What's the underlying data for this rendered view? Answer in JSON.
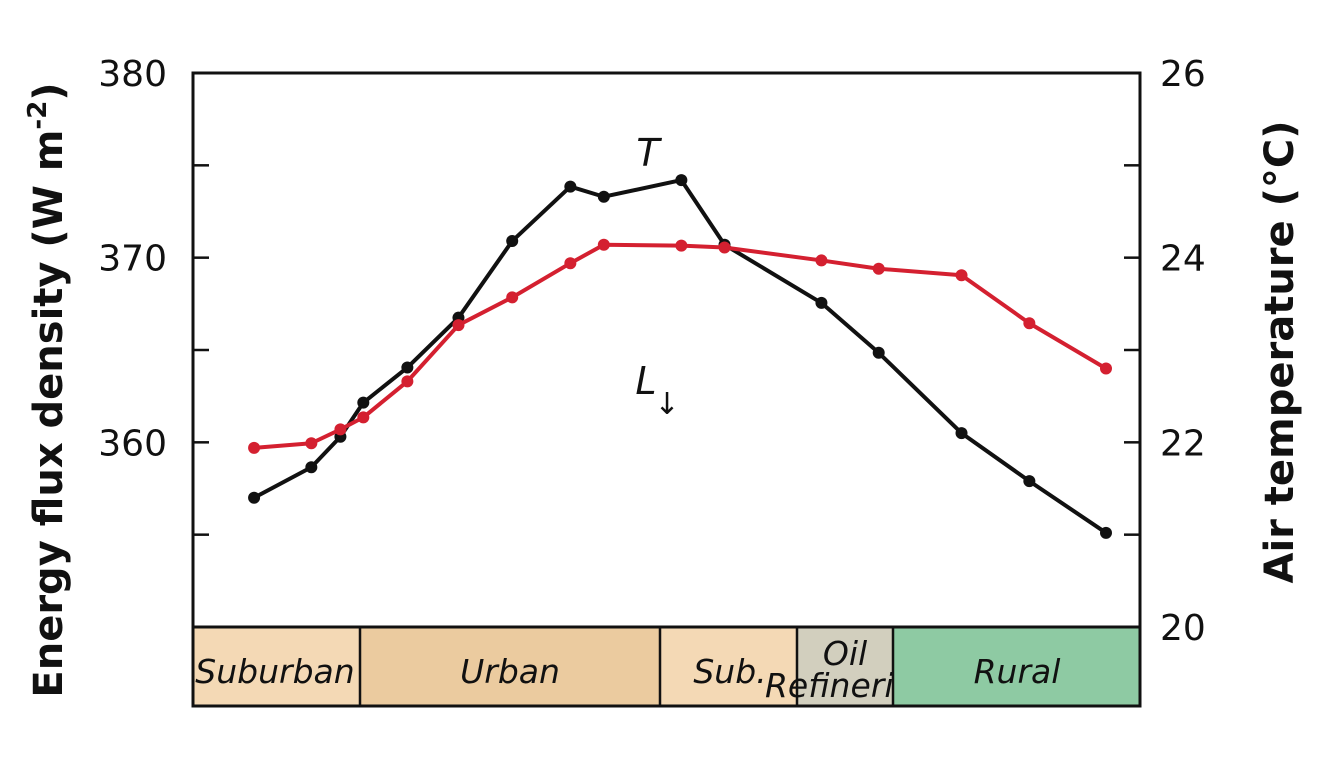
{
  "chart_data": {
    "type": "line",
    "title": "",
    "xlabel": "",
    "ylabel_left": "Energy flux density (W m",
    "ylabel_left_sup": "-2",
    "ylabel_left_close": ")",
    "ylabel_right": "Air temperature (°C)",
    "ylim_left": [
      350,
      380
    ],
    "ylim_right": [
      20,
      26
    ],
    "xlim": [
      0,
      100
    ],
    "left_ticks": [
      "360",
      "370",
      "380"
    ],
    "left_tick_values": [
      360,
      370,
      380
    ],
    "right_ticks": [
      "20",
      "22",
      "24",
      "26"
    ],
    "right_tick_values": [
      20,
      22,
      24,
      26
    ],
    "grid": false,
    "legend": "none",
    "series": [
      {
        "name": "T",
        "axis": "right",
        "color": "#111111",
        "x": [
          3.3,
          9.8,
          13.1,
          15.7,
          20.7,
          26.5,
          32.6,
          39.2,
          43.0,
          51.8,
          56.7,
          67.7,
          74.2,
          83.6,
          91.3,
          100
        ],
        "y": [
          21.4,
          21.73,
          22.06,
          22.43,
          22.81,
          23.35,
          24.18,
          24.77,
          24.66,
          24.84,
          24.14,
          23.51,
          22.97,
          22.1,
          21.58,
          21.02
        ]
      },
      {
        "name": "L↓",
        "axis": "left",
        "color": "#d42030",
        "x": [
          3.3,
          9.8,
          13.1,
          15.7,
          20.7,
          26.5,
          32.6,
          39.2,
          43.0,
          51.8,
          56.7,
          67.7,
          74.2,
          83.6,
          91.3,
          100
        ],
        "y": [
          359.7,
          359.95,
          360.7,
          361.35,
          363.3,
          366.35,
          367.85,
          369.7,
          370.7,
          370.65,
          370.55,
          369.85,
          369.4,
          369.05,
          366.45,
          364.0
        ]
      }
    ],
    "annotations": [
      {
        "text": "T",
        "series": "T"
      },
      {
        "text": "L",
        "arrow": "↓",
        "series": "L↓"
      }
    ],
    "zones": [
      {
        "label": "Suburban",
        "color": "#f4d9b5"
      },
      {
        "label": "Urban",
        "color": "#ebcb9f"
      },
      {
        "label": "Sub.",
        "color": "#f4d9b5"
      },
      {
        "label": "Oil",
        "label2": "Refineries",
        "color": "#d2cfbe"
      },
      {
        "label": "Rural",
        "color": "#8ecaa3"
      }
    ]
  }
}
